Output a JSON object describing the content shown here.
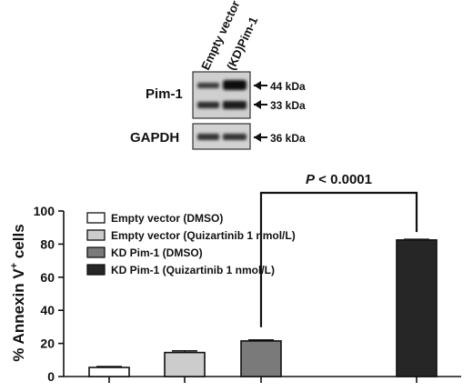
{
  "blot": {
    "lanes": [
      "Empty vector",
      "(KD)Pim-1"
    ],
    "pim1_label": "Pim-1",
    "gapdh_label": "GAPDH",
    "markers": [
      "44 kDa",
      "33 kDa",
      "36 kDa"
    ]
  },
  "chart_data": {
    "type": "bar",
    "ylabel": "% Annexin V+ cells",
    "ylabel_parts": {
      "base": "% Annexin V",
      "sup": "+",
      "tail": " cells"
    },
    "ylim": [
      0,
      100
    ],
    "yticks": [
      0,
      20,
      40,
      60,
      80,
      100
    ],
    "categories": [
      "Empty vector (DMSO)",
      "Empty vector (Quizartinib 1 nmol/L)",
      "KD Pim-1 (DMSO)",
      "KD Pim-1 (Quizartinib 1 nmol/L)"
    ],
    "values": [
      5.5,
      14.5,
      21.5,
      82.5
    ],
    "errors": [
      0.5,
      1.0,
      0.6,
      0.4
    ],
    "colors": [
      "#ffffff",
      "#cccccc",
      "#7a7a7a",
      "#262626"
    ],
    "legend": {
      "placement": "top-left",
      "entries": [
        "Empty vector (DMSO)",
        "Empty vector (Quizartinib 1 nmol/L)",
        "KD Pim-1 (DMSO)",
        "KD Pim-1 (Quizartinib 1 nmol/L)"
      ]
    },
    "annotation": {
      "text_italic": "P",
      "text_rest": " < 0.0001",
      "between": [
        2,
        3
      ]
    },
    "grid": false
  }
}
